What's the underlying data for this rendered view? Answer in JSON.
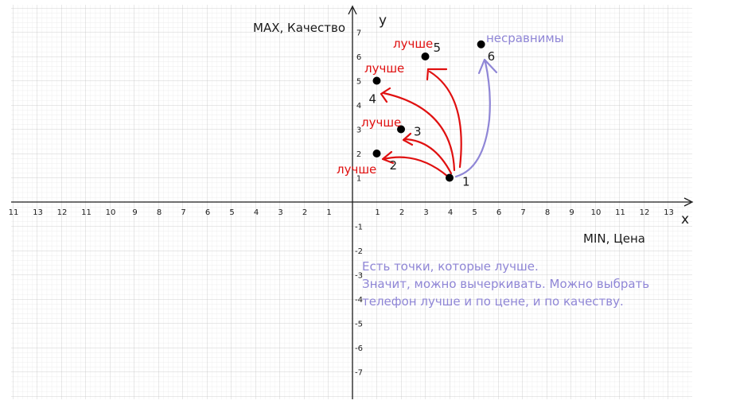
{
  "axes": {
    "y_label": "y",
    "x_label": "x",
    "y_caption": "MAX, Качество",
    "x_caption": "MIN, Цена",
    "x_ticks_pos": [
      "1",
      "2",
      "3",
      "4",
      "5",
      "6",
      "7",
      "8",
      "9",
      "10",
      "11",
      "12",
      "13"
    ],
    "x_ticks_neg": [
      "1",
      "2",
      "3",
      "4",
      "5",
      "6",
      "7",
      "8",
      "9",
      "10",
      "11",
      "12",
      "13",
      "11"
    ],
    "y_ticks_pos": [
      "1",
      "2",
      "3",
      "4",
      "5",
      "6",
      "7"
    ],
    "y_ticks_neg": [
      "-1",
      "-2",
      "-3",
      "-4",
      "-5",
      "-6",
      "-7"
    ]
  },
  "points": [
    {
      "id": "1",
      "label": "1",
      "x": 4,
      "y": 1
    },
    {
      "id": "2",
      "label": "2",
      "x": 1,
      "y": 2
    },
    {
      "id": "3",
      "label": "3",
      "x": 2,
      "y": 3
    },
    {
      "id": "4",
      "label": "4",
      "x": 1,
      "y": 5
    },
    {
      "id": "5",
      "label": "5",
      "x": 3,
      "y": 6
    },
    {
      "id": "6",
      "label": "6",
      "x": 5.3,
      "y": 6.5
    }
  ],
  "annotations": {
    "better_2": "лучше",
    "better_3": "лучше",
    "better_4": "лучше",
    "better_5": "лучше",
    "incomparable_6": "несравнимы"
  },
  "note_lines": [
    "Есть точки, которые лучше.",
    "Значит, можно вычеркивать. Можно выбрать",
    "телефон лучше и по цене, и по качеству."
  ],
  "colors": {
    "grid_minor": "#e6e6e6",
    "grid_major": "#c8c8c8",
    "axis": "#1a1a1a",
    "better_arrows": "#e01010",
    "incomparable_arrow": "#8f86d6",
    "point": "#000000"
  }
}
